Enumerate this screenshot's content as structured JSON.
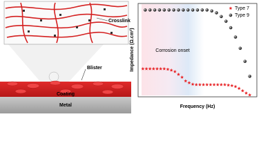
{
  "illustration": {
    "labels": [
      "Crosslink",
      "Blister",
      "Coating",
      "Metal"
    ]
  },
  "chart_data": {
    "type": "scatter",
    "xlabel": "Frequency (Hz)",
    "ylabel": "Impedance (Ω.cm²)",
    "annotation": "Corrosion onset",
    "xlim": [
      0,
      100
    ],
    "ylim": [
      0,
      100
    ],
    "legend": "upper right",
    "series": [
      {
        "name": "Type 7",
        "color": "#e8272a",
        "marker": "star",
        "x": [
          4,
          7,
          10,
          13,
          16,
          19,
          22,
          25,
          28,
          31,
          34,
          37,
          40,
          43,
          46,
          49,
          52,
          55,
          58,
          61,
          64,
          67,
          70,
          73,
          76,
          79,
          82,
          85,
          88,
          91,
          94
        ],
        "values": [
          30,
          30,
          30,
          30,
          30,
          30,
          30,
          29.5,
          28.5,
          27,
          24,
          21,
          17,
          15,
          13.5,
          13,
          13,
          13,
          13,
          13,
          13,
          13,
          13,
          13,
          12.5,
          12,
          11,
          9,
          6.5,
          4,
          2
        ]
      },
      {
        "name": "Type 9",
        "color": "#222222",
        "marker": "sphere",
        "x": [
          6,
          10,
          14,
          18,
          22,
          26,
          30,
          34,
          38,
          42,
          46,
          50,
          54,
          58,
          62,
          66,
          70,
          74,
          78,
          82,
          86,
          90,
          94
        ],
        "values": [
          93,
          93,
          93,
          93,
          93,
          93,
          93,
          93,
          93,
          93,
          93,
          93,
          93,
          93,
          92,
          90,
          86,
          81,
          74,
          64,
          52,
          38,
          22
        ]
      }
    ]
  }
}
